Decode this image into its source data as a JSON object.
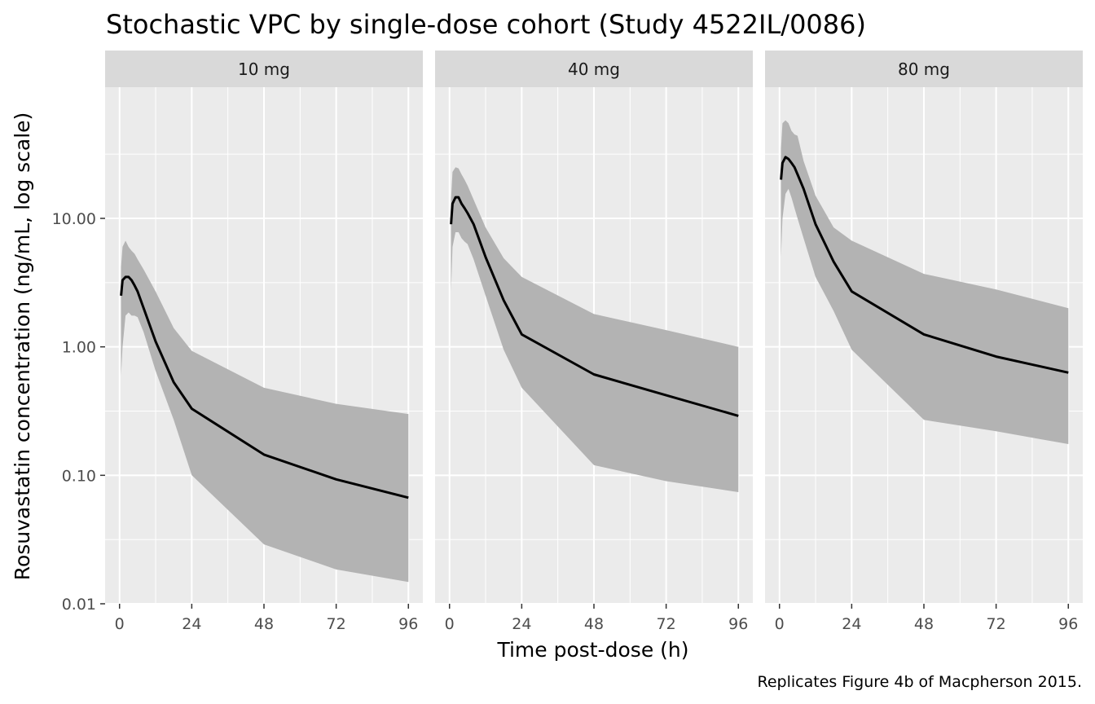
{
  "chart_data": {
    "type": "area",
    "title": "Stochastic VPC by single-dose cohort (Study 4522IL/0086)",
    "xlabel": "Time post-dose (h)",
    "ylabel": "Rosuvastatin concentration (ng/mL, log scale)",
    "caption": "Replicates Figure 4b of Macpherson 2015.",
    "x_scale": "linear",
    "y_scale": "log10",
    "xlim": [
      -4.8,
      100.8
    ],
    "ylim": [
      0.01,
      105
    ],
    "x_ticks": [
      0,
      24,
      48,
      72,
      96
    ],
    "x_tick_labels": [
      "0",
      "24",
      "48",
      "72",
      "96"
    ],
    "y_ticks": [
      0.01,
      0.1,
      1,
      10
    ],
    "y_tick_labels": [
      "0.01",
      "0.10",
      "1.00",
      "10.00"
    ],
    "grid": true,
    "legend": "none",
    "colors": {
      "panel_bg": "#ebebeb",
      "strip_bg": "#d9d9d9",
      "grid": "#ffffff",
      "band": "#b3b3b3",
      "median_line": "#000000"
    },
    "panels": [
      {
        "label": "10 mg",
        "series": [
          {
            "role": "median",
            "x": [
              0.5,
              1,
              2,
              3,
              4,
              5,
              6,
              8,
              12,
              18,
              24,
              48,
              72,
              96
            ],
            "y": [
              2.5,
              3.3,
              3.5,
              3.5,
              3.3,
              3.0,
              2.7,
              2.0,
              1.1,
              0.53,
              0.33,
              0.145,
              0.093,
              0.067
            ]
          },
          {
            "role": "upper_band",
            "x": [
              0.5,
              1,
              2,
              3,
              4,
              5,
              6,
              8,
              12,
              18,
              24,
              48,
              72,
              96
            ],
            "y": [
              4.2,
              6.0,
              6.7,
              6.0,
              5.6,
              5.3,
              4.8,
              4.0,
              2.7,
              1.4,
              0.93,
              0.48,
              0.36,
              0.3
            ]
          },
          {
            "role": "lower_band",
            "x": [
              0.5,
              1,
              2,
              3,
              4,
              5,
              6,
              8,
              12,
              18,
              24,
              48,
              72,
              96
            ],
            "y": [
              0.6,
              1.0,
              1.75,
              1.85,
              1.75,
              1.75,
              1.7,
              1.3,
              0.65,
              0.27,
              0.1,
              0.029,
              0.0185,
              0.0148
            ]
          }
        ]
      },
      {
        "label": "40 mg",
        "series": [
          {
            "role": "median",
            "x": [
              0.5,
              1,
              2,
              3,
              4,
              5,
              6,
              8,
              12,
              18,
              24,
              48,
              72,
              96
            ],
            "y": [
              9.0,
              13.0,
              14.6,
              14.6,
              13.0,
              12.0,
              11.0,
              9.0,
              5.0,
              2.3,
              1.25,
              0.61,
              0.42,
              0.29
            ]
          },
          {
            "role": "upper_band",
            "x": [
              0.5,
              1,
              2,
              3,
              4,
              5,
              6,
              8,
              12,
              18,
              24,
              48,
              72,
              96
            ],
            "y": [
              14.0,
              23.0,
              25.0,
              24.5,
              22.0,
              20.0,
              18.0,
              14.0,
              8.5,
              4.9,
              3.5,
              1.8,
              1.35,
              1.0
            ]
          },
          {
            "role": "lower_band",
            "x": [
              0.5,
              1,
              2,
              3,
              4,
              5,
              6,
              8,
              12,
              18,
              24,
              48,
              72,
              96
            ],
            "y": [
              2.7,
              6.0,
              7.8,
              7.8,
              7.0,
              6.6,
              6.3,
              4.8,
              2.5,
              0.95,
              0.48,
              0.12,
              0.09,
              0.074
            ]
          }
        ]
      },
      {
        "label": "80 mg",
        "series": [
          {
            "role": "median",
            "x": [
              0.5,
              1,
              2,
              3,
              4,
              5,
              6,
              8,
              12,
              18,
              24,
              48,
              72,
              96
            ],
            "y": [
              20.0,
              27.0,
              30.0,
              29.0,
              27.0,
              25.0,
              22.0,
              17.0,
              9.0,
              4.6,
              2.7,
              1.25,
              0.84,
              0.63
            ]
          },
          {
            "role": "upper_band",
            "x": [
              0.5,
              1,
              2,
              3,
              4,
              5,
              6,
              8,
              12,
              18,
              24,
              48,
              72,
              96
            ],
            "y": [
              35.0,
              55.0,
              58.0,
              55.0,
              48.0,
              45.0,
              44.0,
              28.0,
              15.0,
              8.5,
              6.7,
              3.7,
              2.8,
              2.0
            ]
          },
          {
            "role": "lower_band",
            "x": [
              0.5,
              1,
              2,
              3,
              4,
              5,
              6,
              8,
              12,
              18,
              24,
              48,
              72,
              96
            ],
            "y": [
              5.0,
              10.0,
              15.5,
              17.0,
              14.5,
              12.0,
              10.0,
              7.0,
              3.5,
              1.9,
              0.95,
              0.27,
              0.22,
              0.175
            ]
          }
        ]
      }
    ]
  }
}
